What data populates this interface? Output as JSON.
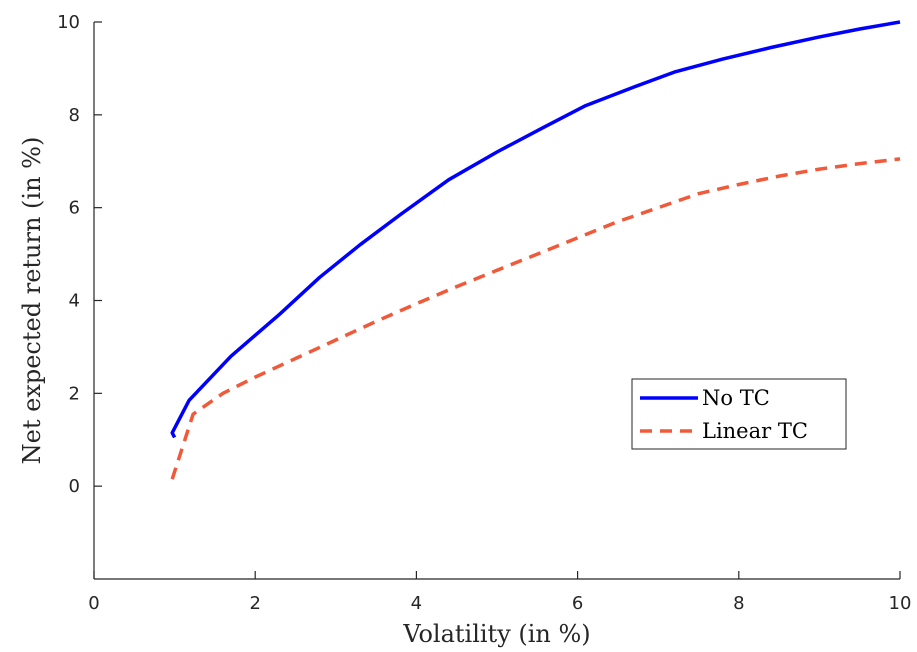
{
  "chart_data": {
    "type": "line",
    "title": "",
    "xlabel": "Volatility (in %)",
    "ylabel": "Net expected return (in %)",
    "xlim": [
      0,
      10
    ],
    "ylim": [
      -2,
      10
    ],
    "xticks": [
      0,
      2,
      4,
      6,
      8,
      10
    ],
    "yticks": [
      0,
      2,
      4,
      6,
      8,
      10
    ],
    "grid": false,
    "legend_position": "lower-right",
    "series": [
      {
        "name": "No TC",
        "color": "#0000ff",
        "style": "solid",
        "x": [
          1.0,
          0.97,
          1.18,
          1.7,
          2.3,
          2.8,
          3.3,
          3.8,
          4.4,
          5.0,
          5.6,
          6.1,
          6.7,
          7.2,
          7.8,
          8.4,
          9.0,
          9.5,
          10.0
        ],
        "y": [
          1.05,
          1.15,
          1.85,
          2.8,
          3.7,
          4.5,
          5.2,
          5.85,
          6.6,
          7.2,
          7.75,
          8.2,
          8.6,
          8.92,
          9.2,
          9.45,
          9.68,
          9.85,
          10.0
        ]
      },
      {
        "name": "Linear TC",
        "color": "#f05a3a",
        "style": "dashed",
        "x": [
          0.97,
          1.23,
          1.6,
          2.0,
          2.5,
          3.0,
          3.5,
          4.0,
          4.5,
          5.0,
          5.5,
          6.0,
          6.5,
          7.0,
          7.5,
          8.0,
          8.5,
          9.0,
          9.5,
          10.0
        ],
        "y": [
          0.15,
          1.55,
          2.0,
          2.35,
          2.75,
          3.15,
          3.55,
          3.93,
          4.3,
          4.65,
          5.0,
          5.35,
          5.7,
          6.0,
          6.3,
          6.5,
          6.68,
          6.83,
          6.95,
          7.05
        ]
      }
    ]
  }
}
